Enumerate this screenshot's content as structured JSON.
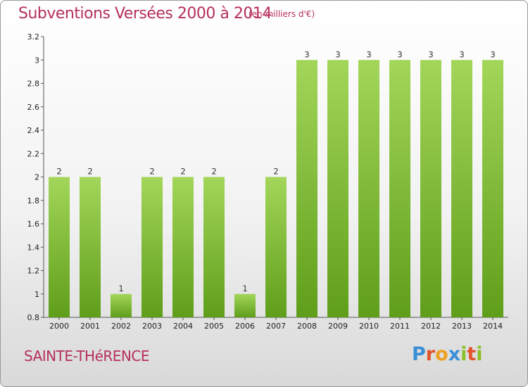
{
  "header": {
    "title": "Subventions Versées 2000 à 2014",
    "subtitle": "(en milliers d'€)"
  },
  "footer": {
    "commune": "SAINTE-THéRENCE",
    "logo": {
      "text": "Proxiti",
      "letter_colors": [
        "#3a8fd6",
        "#e2542b",
        "#f0a020",
        "#3a8fd6",
        "#8cbf26",
        "#e2542b",
        "#8cbf26"
      ]
    }
  },
  "chart_data": {
    "type": "bar",
    "categories": [
      "2000",
      "2001",
      "2002",
      "2003",
      "2004",
      "2005",
      "2006",
      "2007",
      "2008",
      "2009",
      "2010",
      "2011",
      "2012",
      "2013",
      "2014"
    ],
    "values": [
      2,
      2,
      1,
      2,
      2,
      2,
      1,
      2,
      3,
      3,
      3,
      3,
      3,
      3,
      3
    ],
    "data_labels": [
      "2",
      "2",
      "1",
      "2",
      "2",
      "2",
      "1",
      "2",
      "3",
      "3",
      "3",
      "3",
      "3",
      "3",
      "3"
    ],
    "title": "Subventions Versées 2000 à 2014",
    "subtitle": "(en milliers d'€)",
    "xlabel": "",
    "ylabel": "",
    "ylim": [
      0.8,
      3.2
    ],
    "yticks": [
      0.8,
      1,
      1.2,
      1.4,
      1.6,
      1.8,
      2,
      2.2,
      2.4,
      2.6,
      2.8,
      3,
      3.2
    ],
    "ytick_labels": [
      "0.8",
      "1",
      "1.2",
      "1.4",
      "1.6",
      "1.8",
      "2",
      "2.2",
      "2.4",
      "2.6",
      "2.8",
      "3",
      "3.2"
    ],
    "bar_color": "#8cc63f",
    "grid": false,
    "legend": "none"
  }
}
